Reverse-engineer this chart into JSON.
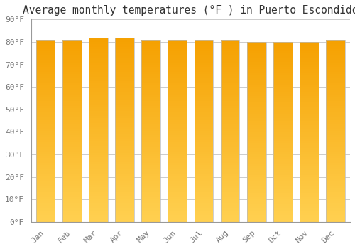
{
  "title": "Average monthly temperatures (°F ) in Puerto Escondido",
  "months": [
    "Jan",
    "Feb",
    "Mar",
    "Apr",
    "May",
    "Jun",
    "Jul",
    "Aug",
    "Sep",
    "Oct",
    "Nov",
    "Dec"
  ],
  "values": [
    81,
    81,
    82,
    82,
    81,
    81,
    81,
    81,
    80,
    80,
    80,
    81
  ],
  "ylim": [
    0,
    90
  ],
  "yticks": [
    0,
    10,
    20,
    30,
    40,
    50,
    60,
    70,
    80,
    90
  ],
  "bar_color_bottom": "#FFD050",
  "bar_color_top": "#F5A000",
  "bar_edge_color": "#BBBBBB",
  "background_color": "#FFFFFF",
  "plot_bg_color": "#FFFFFF",
  "grid_color": "#CCCCCC",
  "title_fontsize": 10.5,
  "tick_fontsize": 8,
  "tick_color": "#777777",
  "title_color": "#333333",
  "bar_width": 0.72
}
